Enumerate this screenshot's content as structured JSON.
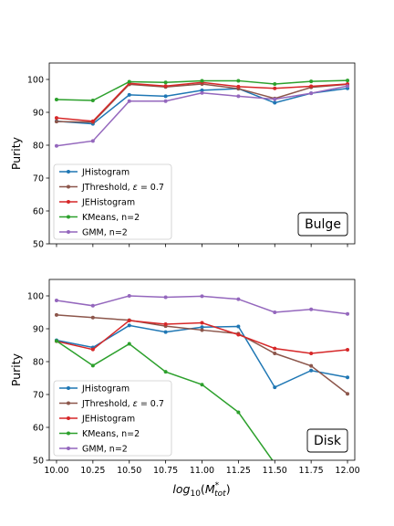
{
  "chart_data": [
    {
      "type": "line",
      "panel": "Bulge",
      "ylabel": "Purity",
      "ylim": [
        50,
        105
      ],
      "xlim": [
        9.95,
        12.05
      ],
      "yticks": [
        50,
        60,
        70,
        80,
        90,
        100
      ],
      "x": [
        10.0,
        10.25,
        10.5,
        10.75,
        11.0,
        11.25,
        11.5,
        11.75,
        12.0
      ],
      "legend_position": "lower-left",
      "series": [
        {
          "name": "JHistogram",
          "color": "#1f77b4",
          "values": [
            87.3,
            86.5,
            95.3,
            94.9,
            96.7,
            97.2,
            92.9,
            95.8,
            97.3
          ]
        },
        {
          "name": "JThreshold, ε = 0.7",
          "color": "#8c564b",
          "values": [
            87.2,
            87.0,
            98.5,
            97.7,
            98.6,
            97.2,
            94.2,
            97.6,
            98.5
          ]
        },
        {
          "name": "JEHistogram",
          "color": "#d62728",
          "values": [
            88.3,
            87.3,
            98.8,
            98.0,
            99.1,
            97.8,
            97.3,
            97.9,
            98.6
          ]
        },
        {
          "name": "KMeans, n=2",
          "color": "#2ca02c",
          "values": [
            93.9,
            93.6,
            99.3,
            99.1,
            99.6,
            99.6,
            98.6,
            99.4,
            99.7
          ]
        },
        {
          "name": "GMM, n=2",
          "color": "#9467bd",
          "values": [
            79.8,
            81.3,
            93.4,
            93.4,
            95.9,
            94.9,
            94.0,
            95.8,
            98.0
          ]
        }
      ]
    },
    {
      "type": "line",
      "panel": "Disk",
      "ylabel": "Purity",
      "xlabel": "log10(M*tot)",
      "ylim": [
        50,
        105
      ],
      "xlim": [
        9.95,
        12.05
      ],
      "yticks": [
        50,
        60,
        70,
        80,
        90,
        100
      ],
      "xticks": [
        "10.00",
        "10.25",
        "10.50",
        "10.75",
        "11.00",
        "11.25",
        "11.50",
        "11.75",
        "12.00"
      ],
      "x": [
        10.0,
        10.25,
        10.5,
        10.75,
        11.0,
        11.25,
        11.5,
        11.75,
        12.0
      ],
      "legend_position": "lower-left",
      "series": [
        {
          "name": "JHistogram",
          "color": "#1f77b4",
          "values": [
            86.5,
            84.3,
            91.0,
            89.0,
            90.5,
            90.7,
            72.2,
            77.3,
            75.2
          ]
        },
        {
          "name": "JThreshold, ε = 0.7",
          "color": "#8c564b",
          "values": [
            94.2,
            93.4,
            92.6,
            90.8,
            89.6,
            88.5,
            82.5,
            78.7,
            70.2
          ]
        },
        {
          "name": "JEHistogram",
          "color": "#d62728",
          "values": [
            86.2,
            83.7,
            92.5,
            91.4,
            91.8,
            88.2,
            84.0,
            82.5,
            83.6
          ]
        },
        {
          "name": "KMeans, n=2",
          "color": "#2ca02c",
          "values": [
            86.3,
            78.8,
            85.4,
            76.9,
            73.0,
            64.6,
            49.0,
            null,
            null
          ]
        },
        {
          "name": "GMM, n=2",
          "color": "#9467bd",
          "values": [
            98.6,
            97.0,
            100.0,
            99.6,
            99.9,
            99.0,
            95.0,
            95.9,
            94.5
          ]
        }
      ]
    }
  ]
}
